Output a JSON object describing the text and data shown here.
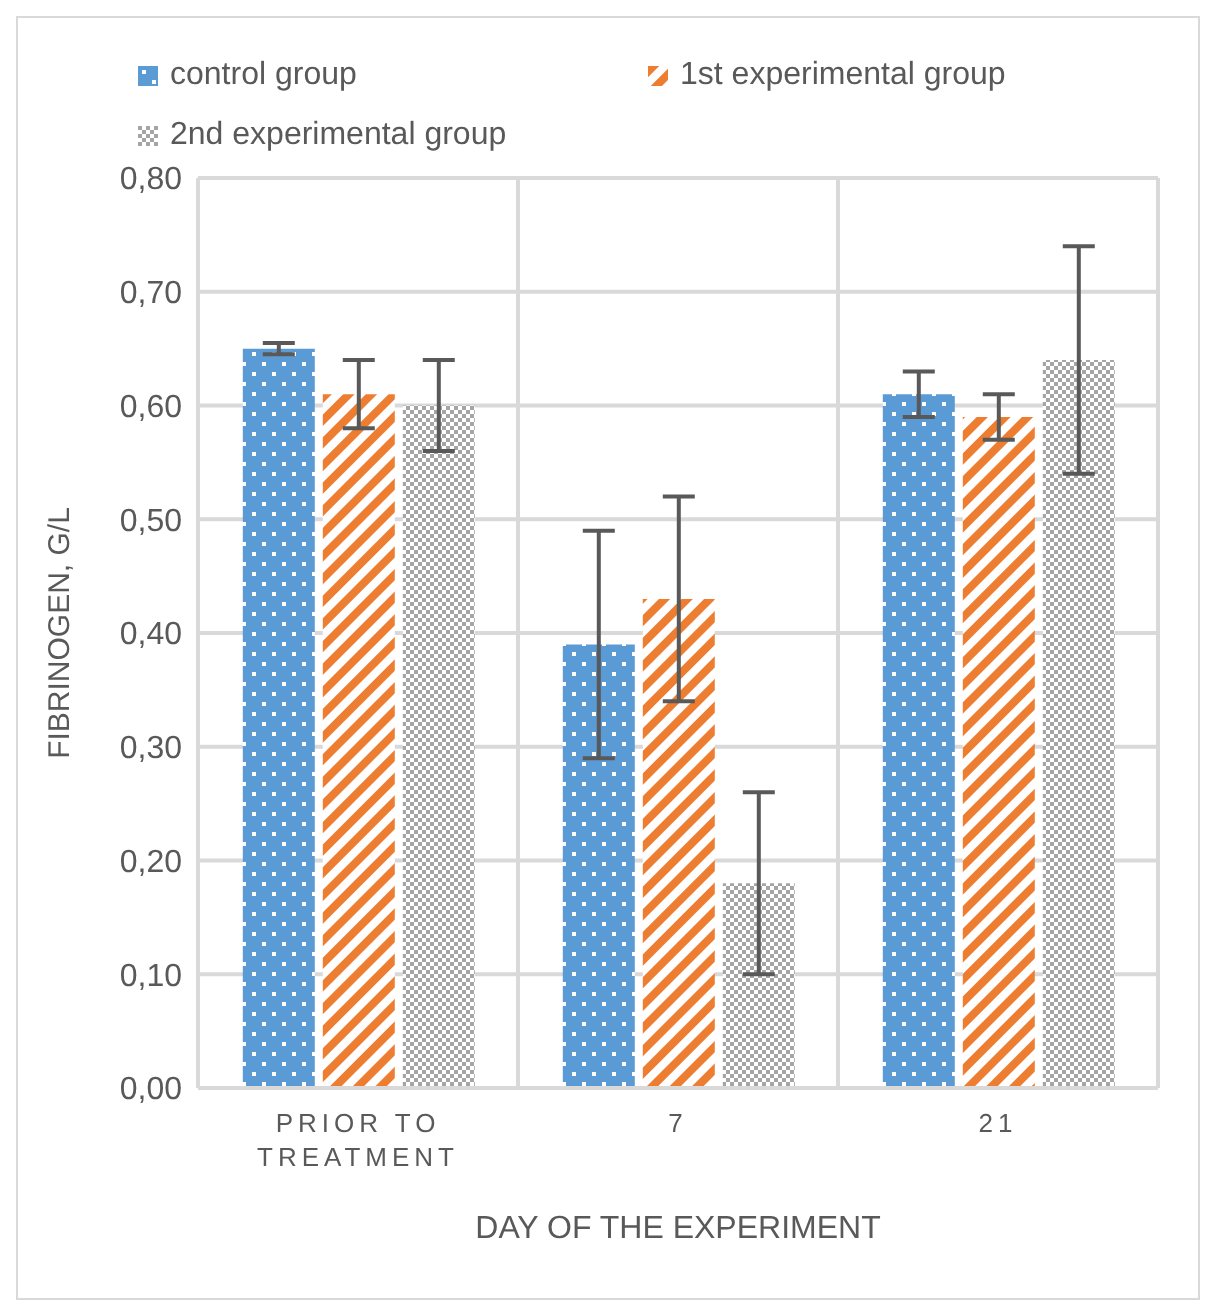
{
  "chart_data": {
    "type": "bar",
    "xlabel": "DAY OF THE EXPERIMENT",
    "ylabel": "FIBRINOGEN, G/L",
    "categories": [
      "PRIOR TO TREATMENT",
      "7",
      "21"
    ],
    "series": [
      {
        "name": "control group",
        "color": "#5b9bd5",
        "values": [
          0.65,
          0.39,
          0.61
        ],
        "errors": [
          0.005,
          0.1,
          0.02
        ]
      },
      {
        "name": "1st experimental group",
        "color": "#ed7d31",
        "values": [
          0.61,
          0.43,
          0.59
        ],
        "errors": [
          0.03,
          0.09,
          0.02
        ]
      },
      {
        "name": "2nd experimental group",
        "color": "#a5a5a5",
        "values": [
          0.6,
          0.18,
          0.64
        ],
        "errors": [
          0.04,
          0.08,
          0.1
        ]
      }
    ],
    "ylim": [
      0,
      0.8
    ],
    "yticks": [
      {
        "value": 0,
        "label": "0,00"
      },
      {
        "value": 0.1,
        "label": "0,10"
      },
      {
        "value": 0.2,
        "label": "0,20"
      },
      {
        "value": 0.3,
        "label": "0,30"
      },
      {
        "value": 0.4,
        "label": "0,40"
      },
      {
        "value": 0.5,
        "label": "0,50"
      },
      {
        "value": 0.6,
        "label": "0,60"
      },
      {
        "value": 0.7,
        "label": "0,70"
      },
      {
        "value": 0.8,
        "label": "0,80"
      }
    ],
    "grid": true,
    "legend": "top left"
  }
}
